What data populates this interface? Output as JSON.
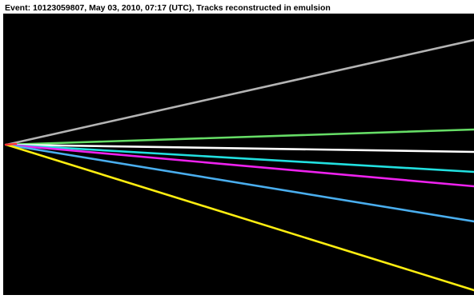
{
  "event": {
    "caption": "Event: 10123059807, May 03, 2010, 07:17 (UTC), Tracks reconstructed in emulsion"
  },
  "display": {
    "background": "#000000"
  },
  "tracks": [
    {
      "color": "#b4b4b4"
    },
    {
      "color": "#66dd66"
    },
    {
      "color": "#ffffff"
    },
    {
      "color": "#22e0e0"
    },
    {
      "color": "#ee22ee"
    },
    {
      "color": "#4aaeee"
    },
    {
      "color": "#ffee11"
    },
    {
      "color": "#ff3333"
    }
  ]
}
